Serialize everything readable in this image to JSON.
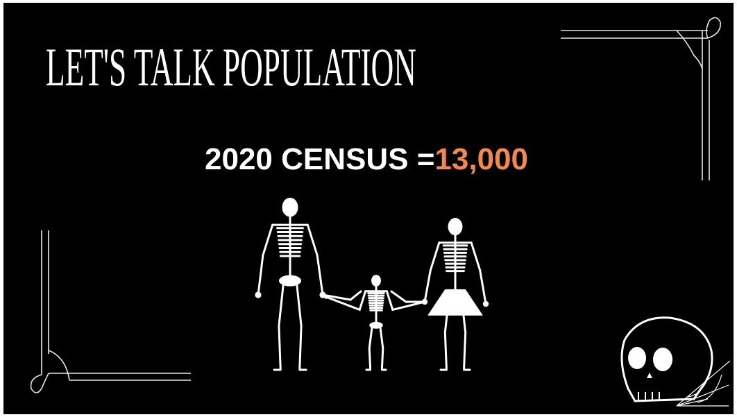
{
  "header": {
    "title": "LET'S TALK POPULATION"
  },
  "census": {
    "label": "2020 CENSUS =",
    "value": "13,000"
  }
}
